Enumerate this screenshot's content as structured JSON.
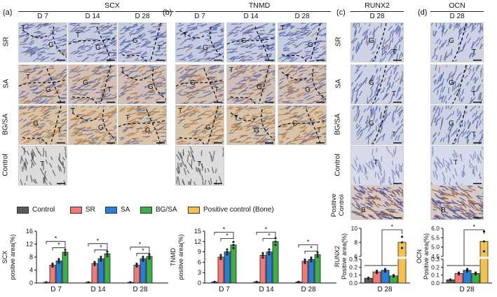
{
  "panels": {
    "a": {
      "letter": "(a)",
      "title": "SCX",
      "cols": [
        "D 7",
        "D 14",
        "D 28"
      ],
      "rows": [
        "SR",
        "SA",
        "BG/SA",
        "Control"
      ]
    },
    "b": {
      "letter": "(b)",
      "title": "TNMD",
      "cols": [
        "D 7",
        "D 14",
        "D 28"
      ]
    },
    "c": {
      "letter": "(c)",
      "title": "RUNX2",
      "col": "D 28",
      "rows": [
        "SR",
        "SA",
        "BG/SA",
        "Control",
        "Positive\nControl"
      ]
    },
    "d": {
      "letter": "(d)",
      "title": "OCN",
      "col": "D 28"
    }
  },
  "tile_letters": {
    "T": "T",
    "G": "G",
    "B": "B"
  },
  "legend": [
    {
      "label": "Control",
      "color": "#5a5a5a"
    },
    {
      "label": "SR",
      "color": "#f07a7a"
    },
    {
      "label": "SA",
      "color": "#2a7fd4"
    },
    {
      "label": "BG/SA",
      "color": "#3fae4a"
    },
    {
      "label": "Positive control (Bone)",
      "color": "#f2c14e"
    }
  ],
  "colors": {
    "stain_brown": "#b07a4a",
    "stain_blue": "#5a6aa8",
    "tissue_bg": "#dcd6dc"
  },
  "chart_data": [
    {
      "type": "bar",
      "ylabel": "SCX\npositive area(%)",
      "categories": [
        "D 7",
        "D 14",
        "D 28"
      ],
      "yticks": [
        "0",
        "4",
        "8",
        "12",
        "16"
      ],
      "ylim": [
        0,
        16
      ],
      "series": [
        {
          "name": "Control",
          "values": [
            0.2,
            0.2,
            0.2
          ]
        },
        {
          "name": "SR",
          "values": [
            5.5,
            6.0,
            5.5
          ]
        },
        {
          "name": "SA",
          "values": [
            6.8,
            7.5,
            7.5
          ]
        },
        {
          "name": "BG/SA",
          "values": [
            9.5,
            9.0,
            8.2
          ]
        }
      ],
      "significance": "*"
    },
    {
      "type": "bar",
      "ylabel": "TNMD\npositive area(%)",
      "categories": [
        "D 7",
        "D 14",
        "D 28"
      ],
      "yticks": [
        "0",
        "3",
        "6",
        "9",
        "12",
        "15"
      ],
      "ylim": [
        0,
        15
      ],
      "series": [
        {
          "name": "Control",
          "values": [
            0.3,
            0.3,
            0.3
          ]
        },
        {
          "name": "SR",
          "values": [
            7.5,
            8.0,
            6.3
          ]
        },
        {
          "name": "SA",
          "values": [
            9.0,
            9.0,
            6.8
          ]
        },
        {
          "name": "BG/SA",
          "values": [
            11.0,
            12.0,
            8.2
          ]
        }
      ],
      "significance": "*"
    },
    {
      "type": "bar",
      "ylabel": "RUNX2\nPositive area(%)",
      "categories": [
        "D 28"
      ],
      "yticks_low": [
        "0.0",
        "0.1",
        "0.2",
        "0.3"
      ],
      "yticks_high": [
        "6",
        "8",
        "10"
      ],
      "broken_axis": true,
      "series": [
        {
          "name": "Control",
          "values": [
            0.06
          ]
        },
        {
          "name": "SR",
          "values": [
            0.14
          ]
        },
        {
          "name": "SA",
          "values": [
            0.16
          ]
        },
        {
          "name": "BG/SA",
          "values": [
            0.09
          ]
        },
        {
          "name": "Positive control (Bone)",
          "values": [
            8.0
          ]
        }
      ],
      "significance": "*"
    },
    {
      "type": "bar",
      "ylabel": "OCN\nPositive area(%)",
      "categories": [
        "D 28"
      ],
      "yticks_low": [
        "0.0",
        "0.1",
        "0.2",
        "0.3"
      ],
      "yticks_high": [
        "4.5",
        "5.0",
        "5.5",
        "6.0"
      ],
      "broken_axis": true,
      "series": [
        {
          "name": "Control",
          "values": [
            0.04
          ]
        },
        {
          "name": "SR",
          "values": [
            0.12
          ]
        },
        {
          "name": "SA",
          "values": [
            0.16
          ]
        },
        {
          "name": "BG/SA",
          "values": [
            0.12
          ]
        },
        {
          "name": "Positive control (Bone)",
          "values": [
            5.3
          ]
        }
      ],
      "significance": "*"
    }
  ]
}
